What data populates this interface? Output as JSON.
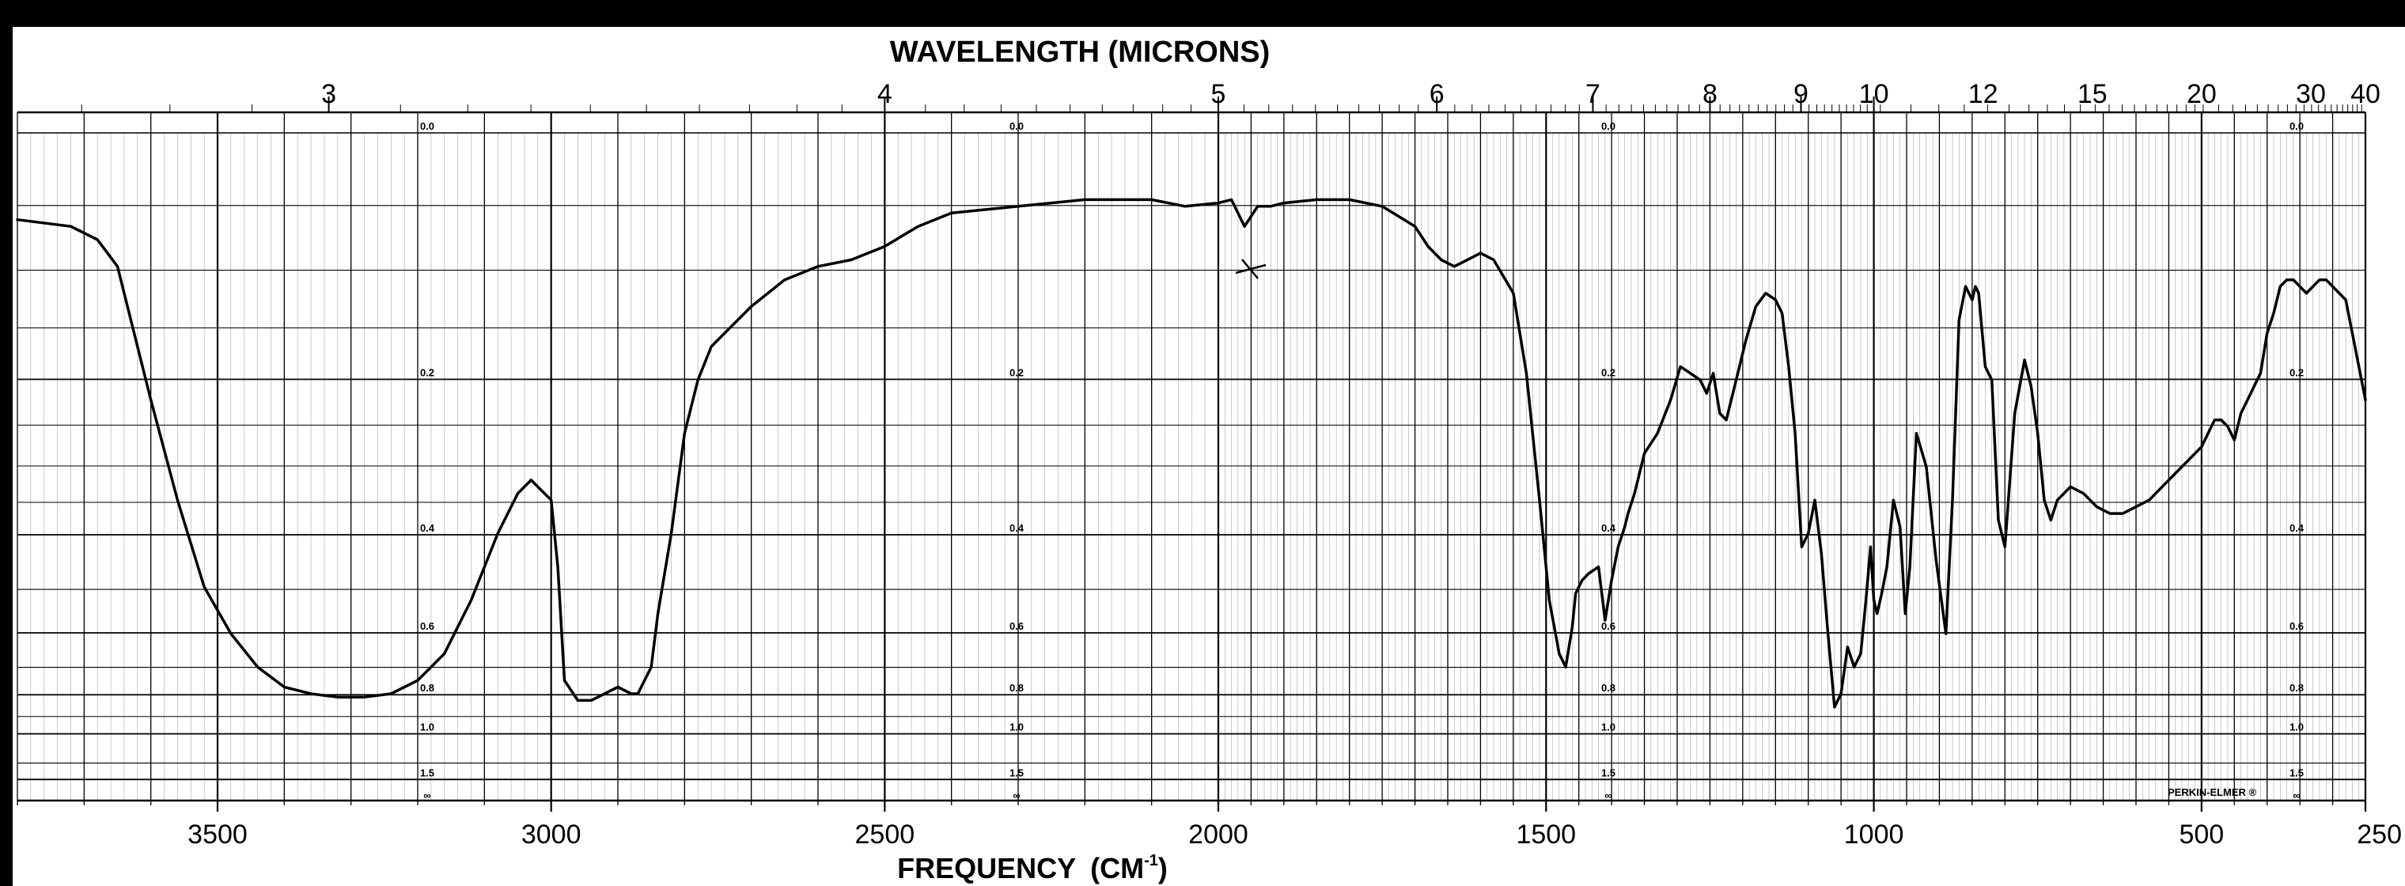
{
  "chart_data": {
    "type": "line",
    "title": "WAVELENGTH (MICRONS)",
    "xlabel": "FREQUENCY (CM⁻¹)",
    "xlabel_main": "FREQUENCY",
    "xlabel_unit": "(CM",
    "xlabel_unit_sup": "-1",
    "xlabel_unit_close": ")",
    "x_axis_reversed": true,
    "xlim": [
      3800,
      250
    ],
    "frequency_ticks": [
      "3500",
      "3000",
      "2500",
      "2000",
      "1500",
      "1000",
      "500",
      "250"
    ],
    "wavelength_ticks": [
      "3",
      "4",
      "5",
      "6",
      "7",
      "8",
      "9",
      "10",
      "12",
      "15",
      "20",
      "30",
      "40"
    ],
    "absorbance_labels": [
      "0.0",
      "0.2",
      "0.4",
      "0.6",
      "0.8",
      "1.0",
      "1.5",
      "∞"
    ],
    "brand": "PERKIN-ELMER ®",
    "grid": true,
    "y_axis": "transmittance",
    "ylim": [
      0,
      100
    ],
    "series": [
      {
        "x": [
          3800,
          3720,
          3680,
          3650,
          3620,
          3600,
          3560,
          3520,
          3480,
          3440,
          3400,
          3360,
          3320,
          3280,
          3240,
          3200,
          3160,
          3120,
          3080,
          3050,
          3030,
          3000,
          2990,
          2980,
          2960,
          2940,
          2920,
          2900,
          2880,
          2870,
          2860,
          2850,
          2840,
          2820,
          2800,
          2780,
          2760,
          2740,
          2700,
          2650,
          2600,
          2550,
          2500,
          2450,
          2400,
          2300,
          2200,
          2100,
          2050,
          2000,
          1980,
          1960,
          1940,
          1920,
          1900,
          1850,
          1800,
          1750,
          1700,
          1680,
          1660,
          1640,
          1620,
          1600,
          1580,
          1550,
          1530,
          1510,
          1495,
          1480,
          1470,
          1460,
          1455,
          1445,
          1435,
          1420,
          1410,
          1400,
          1390,
          1380,
          1375,
          1365,
          1350,
          1330,
          1310,
          1295,
          1280,
          1265,
          1255,
          1245,
          1235,
          1225,
          1210,
          1195,
          1180,
          1165,
          1150,
          1140,
          1130,
          1120,
          1110,
          1100,
          1090,
          1080,
          1070,
          1060,
          1050,
          1040,
          1030,
          1020,
          1012,
          1005,
          1000,
          995,
          988,
          980,
          970,
          960,
          952,
          945,
          935,
          920,
          905,
          890,
          880,
          870,
          860,
          850,
          845,
          840,
          830,
          820,
          810,
          800,
          785,
          770,
          760,
          750,
          740,
          730,
          720,
          700,
          680,
          660,
          640,
          620,
          600,
          580,
          560,
          540,
          520,
          500,
          490,
          480,
          470,
          460,
          450,
          440,
          430,
          420,
          410,
          400,
          390,
          380,
          370,
          360,
          350,
          340,
          330,
          320,
          310,
          300,
          290,
          280,
          270,
          260,
          250
        ],
        "y": [
          87,
          86,
          84,
          80,
          68,
          60,
          45,
          32,
          25,
          20,
          17,
          16,
          15.5,
          15.5,
          16,
          18,
          22,
          30,
          40,
          46,
          48,
          45,
          35,
          18,
          15,
          15,
          16,
          17,
          16,
          16,
          18,
          20,
          28,
          40,
          55,
          63,
          68,
          70,
          74,
          78,
          80,
          81,
          83,
          86,
          88,
          89,
          90,
          90,
          89,
          89.5,
          90,
          86,
          89,
          89,
          89.5,
          90,
          90,
          89,
          86,
          83,
          81,
          80,
          81,
          82,
          81,
          76,
          64,
          45,
          30,
          22,
          20,
          26,
          31,
          33,
          34,
          35,
          27,
          33,
          38,
          41,
          43,
          46,
          52,
          55,
          60,
          65,
          64,
          63,
          61,
          64,
          58,
          57,
          63,
          69,
          74,
          76,
          75,
          73,
          65,
          55,
          38,
          40,
          45,
          37,
          25,
          14,
          16,
          23,
          20,
          22,
          30,
          38,
          30,
          28,
          31,
          35,
          45,
          41,
          28,
          35,
          55,
          50,
          36,
          25,
          45,
          72,
          77,
          75,
          77,
          76,
          65,
          63,
          42,
          38,
          58,
          66,
          62,
          55,
          45,
          42,
          45,
          47,
          46,
          44,
          43,
          43,
          44,
          45,
          47,
          49,
          51,
          53,
          55,
          57,
          57,
          56,
          54,
          58,
          60,
          62,
          64,
          70,
          73,
          77,
          78,
          78,
          77,
          76,
          77,
          78,
          78,
          77,
          76,
          75,
          70,
          65,
          60
        ]
      }
    ]
  }
}
